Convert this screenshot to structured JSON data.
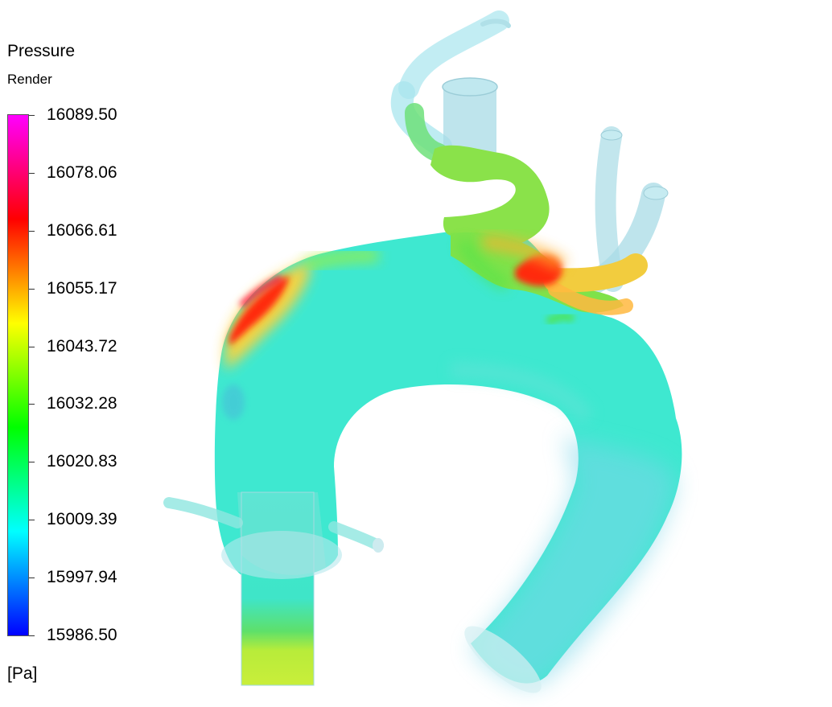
{
  "legend": {
    "title": "Pressure",
    "subtitle": "Render",
    "units": "[Pa]",
    "ticks": [
      "16089.50",
      "16078.06",
      "16066.61",
      "16055.17",
      "16043.72",
      "16032.28",
      "16020.83",
      "16009.39",
      "15997.94",
      "15986.50"
    ],
    "colors": [
      "#ff00ff",
      "#ff0000",
      "#ffff00",
      "#00ff00",
      "#00ffff",
      "#0000ff"
    ]
  },
  "model": {
    "body_color": "#3ee8d0",
    "vessel_tint": "#a8e6ee",
    "high_pressure_color": "#ff2a10",
    "medium_pressure_color": "#ffd23a"
  }
}
